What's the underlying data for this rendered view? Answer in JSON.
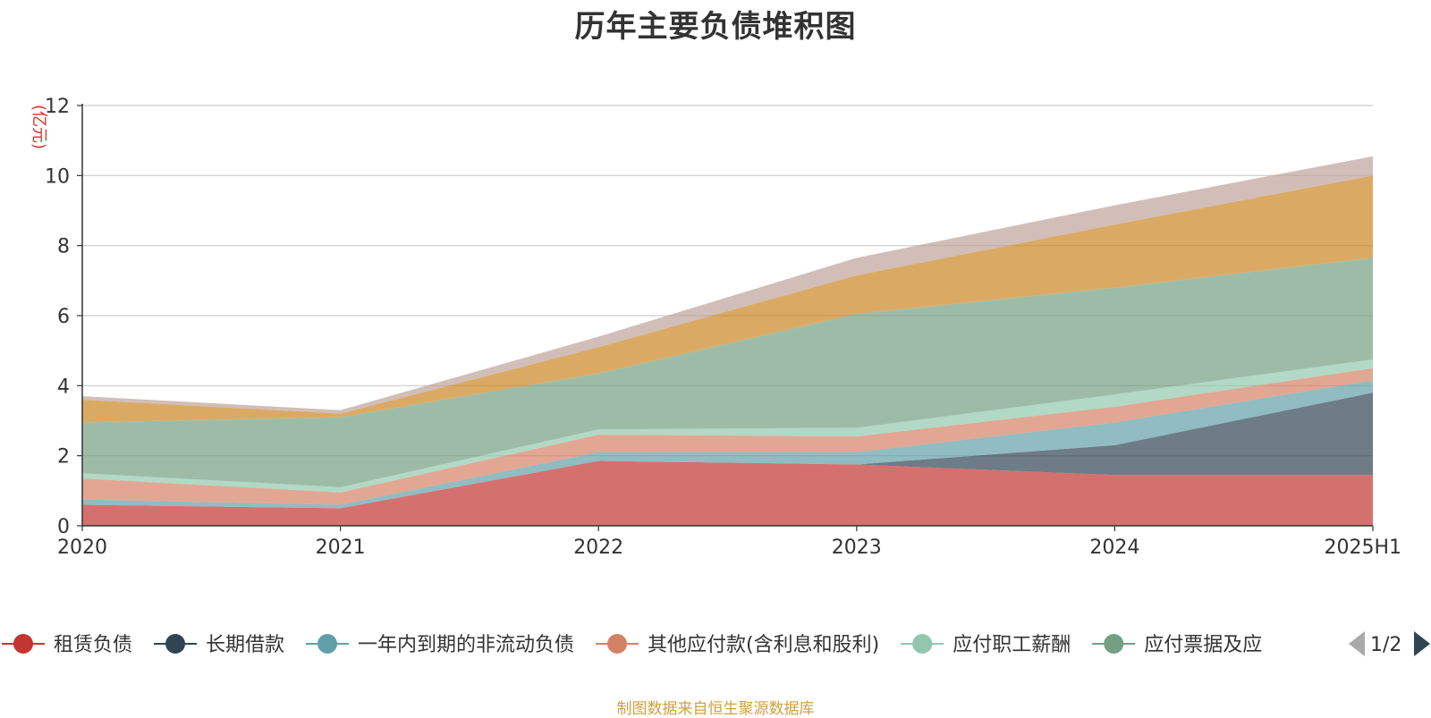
{
  "chart_data": {
    "type": "area",
    "stacked": true,
    "title": "历年主要负债堆积图",
    "ylabel": "(亿元)",
    "xlabel": "",
    "categories": [
      "2020",
      "2021",
      "2022",
      "2023",
      "2024",
      "2025H1"
    ],
    "ylim": [
      0,
      12
    ],
    "yticks": [
      0,
      2,
      4,
      6,
      8,
      10,
      12
    ],
    "grid": true,
    "legend_position": "bottom",
    "series": [
      {
        "name": "租赁负债",
        "color": "#c23531",
        "values": [
          0.6,
          0.5,
          1.85,
          1.75,
          1.45,
          1.45
        ]
      },
      {
        "name": "长期借款",
        "color": "#2f4554",
        "values": [
          0.0,
          0.0,
          0.0,
          0.0,
          0.85,
          2.35
        ]
      },
      {
        "name": "一年内到期的非流动负债",
        "color": "#61a0a8",
        "values": [
          0.15,
          0.1,
          0.25,
          0.35,
          0.65,
          0.35
        ]
      },
      {
        "name": "其他应付款(含利息和股利)",
        "color": "#d48265",
        "values": [
          0.6,
          0.35,
          0.5,
          0.45,
          0.45,
          0.35
        ]
      },
      {
        "name": "应付职工薪酬",
        "color": "#91c7ae",
        "values": [
          0.15,
          0.15,
          0.15,
          0.25,
          0.35,
          0.25
        ]
      },
      {
        "name": "应付票据及应付账款",
        "color": "#749f83",
        "values": [
          1.45,
          2.0,
          1.6,
          3.25,
          3.05,
          2.9
        ]
      },
      {
        "name": "",
        "color": "#ca8622",
        "values": [
          0.65,
          0.1,
          0.75,
          1.1,
          1.8,
          2.35
        ]
      },
      {
        "name": "",
        "color": "#bda29a",
        "values": [
          0.1,
          0.1,
          0.3,
          0.5,
          0.55,
          0.55
        ]
      }
    ]
  },
  "legend": {
    "items": [
      {
        "label": "租赁负债",
        "color": "#c23531"
      },
      {
        "label": "长期借款",
        "color": "#2f4554"
      },
      {
        "label": "一年内到期的非流动负债",
        "color": "#61a0a8"
      },
      {
        "label": "其他应付款(含利息和股利)",
        "color": "#d48265"
      },
      {
        "label": "应付职工薪酬",
        "color": "#91c7ae"
      },
      {
        "label": "应付票据及应",
        "color": "#749f83"
      }
    ],
    "page_indicator": "1/2",
    "prev_icon": "triangle-left-icon",
    "next_icon": "triangle-right-icon"
  },
  "footer": {
    "source": "制图数据来自恒生聚源数据库"
  }
}
